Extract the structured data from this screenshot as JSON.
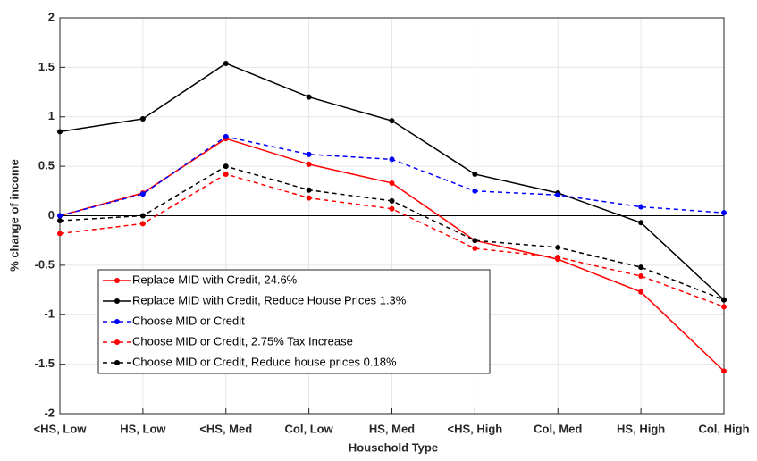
{
  "chart_data": {
    "type": "line",
    "xlabel": "Household Type",
    "ylabel": "% change of income",
    "categories": [
      "<HS, Low",
      "HS, Low",
      "<HS, Med",
      "Col, Low",
      "HS, Med",
      "<HS, High",
      "Col, Med",
      "HS, High",
      "Col, High"
    ],
    "ylim": [
      -2,
      2
    ],
    "yticks": [
      -2,
      -1.5,
      -1,
      -0.5,
      0,
      0.5,
      1,
      1.5,
      2
    ],
    "grid": true,
    "legend": "lower left",
    "series": [
      {
        "name": "Replace MID with Credit, 24.6%",
        "color": "#ff0000",
        "style": "solid",
        "values": [
          0,
          0.23,
          0.78,
          0.52,
          0.33,
          -0.25,
          -0.44,
          -0.77,
          -1.57
        ]
      },
      {
        "name": "Replace MID with Credit, Reduce House Prices 1.3%",
        "color": "#000000",
        "style": "solid",
        "values": [
          0.85,
          0.98,
          1.54,
          1.2,
          0.96,
          0.42,
          0.23,
          -0.07,
          -0.85
        ]
      },
      {
        "name": "Choose MID or Credit",
        "color": "#0000ff",
        "style": "dashed",
        "values": [
          0,
          0.22,
          0.8,
          0.62,
          0.57,
          0.25,
          0.21,
          0.09,
          0.03
        ]
      },
      {
        "name": "Choose MID or Credit, 2.75% Tax Increase",
        "color": "#ff0000",
        "style": "dashed",
        "values": [
          -0.18,
          -0.08,
          0.42,
          0.18,
          0.07,
          -0.33,
          -0.42,
          -0.61,
          -0.92
        ]
      },
      {
        "name": "Choose MID or Credit, Reduce house prices 0.18%",
        "color": "#000000",
        "style": "dashed",
        "values": [
          -0.05,
          0,
          0.5,
          0.26,
          0.15,
          -0.25,
          -0.32,
          -0.52,
          -0.85
        ]
      }
    ]
  }
}
